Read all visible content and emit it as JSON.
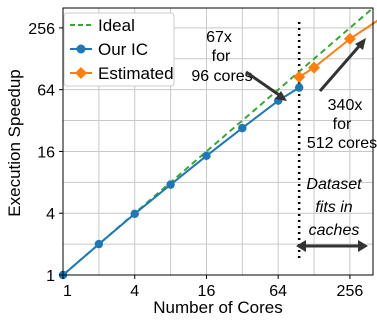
{
  "chart_data": {
    "type": "line",
    "xscale": "log2",
    "yscale": "log2",
    "xlabel": "Number of Cores",
    "ylabel": "Execution Speedup",
    "xlim": [
      1,
      400
    ],
    "ylim": [
      1,
      400
    ],
    "xticks": [
      1,
      4,
      16,
      64,
      256
    ],
    "xtick_labels": [
      "1",
      "4",
      "16",
      "64",
      "256"
    ],
    "yticks": [
      1,
      4,
      16,
      64,
      256
    ],
    "ytick_labels": [
      "1",
      "4",
      "16",
      "64",
      "256"
    ],
    "grid": true,
    "legend_position": "top-left",
    "series": [
      {
        "name": "Ideal",
        "style": "dashed",
        "color": "#3aa63a",
        "x": [
          1,
          400
        ],
        "y": [
          1,
          400
        ]
      },
      {
        "name": "Our IC",
        "style": "solid",
        "marker": "circle",
        "color": "#1f77b4",
        "x": [
          1,
          2,
          4,
          8,
          16,
          32,
          64,
          96
        ],
        "y": [
          1,
          2,
          3.95,
          7.6,
          14.5,
          27,
          50,
          67
        ]
      },
      {
        "name": "Estimated",
        "style": "solid",
        "marker": "diamond",
        "color": "#ff7f0e",
        "x": [
          96,
          128,
          256,
          512
        ],
        "y": [
          85,
          105,
          200,
          340
        ]
      }
    ],
    "threshold_x": 96,
    "annotations": {
      "left": [
        "67x",
        "for",
        "96 cores"
      ],
      "right": [
        "340x",
        "for",
        "512 cores"
      ],
      "region": [
        "Dataset",
        "fits in",
        "caches"
      ]
    }
  }
}
